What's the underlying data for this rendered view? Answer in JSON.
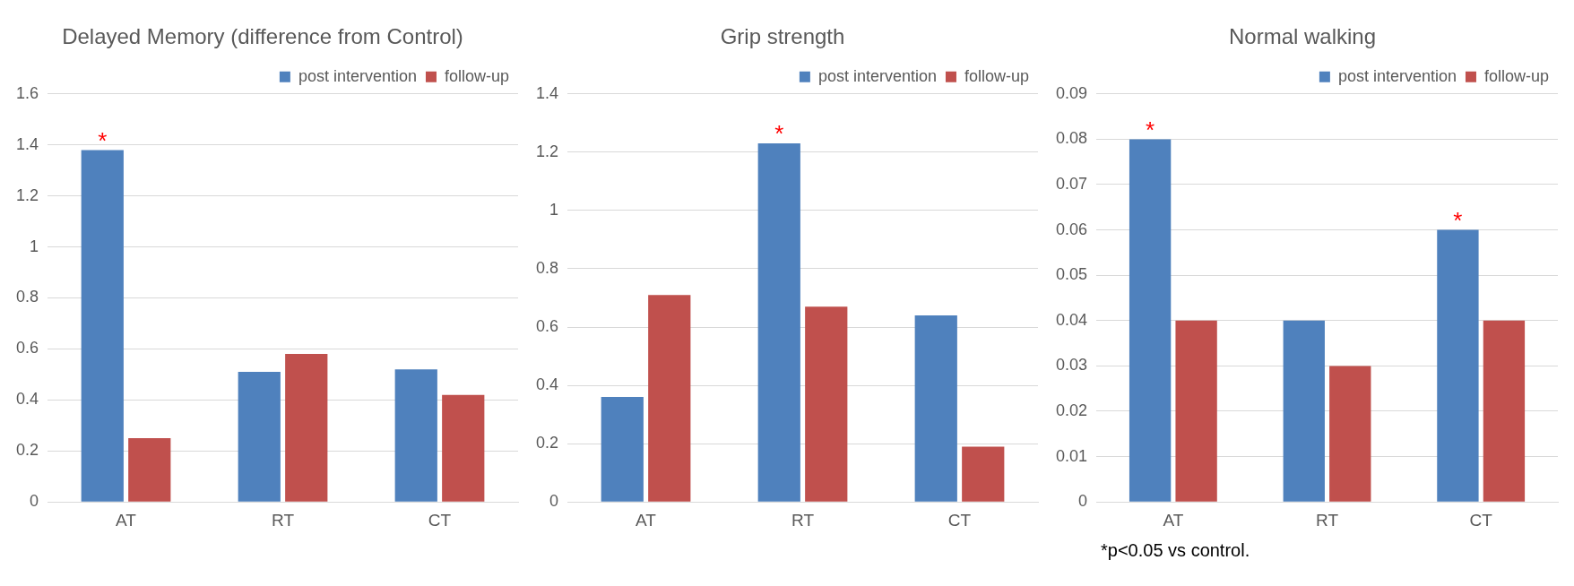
{
  "chart_data": [
    {
      "type": "bar",
      "title": "Delayed Memory (difference from Control)",
      "categories": [
        "AT",
        "RT",
        "CT"
      ],
      "series": [
        {
          "name": "post intervention",
          "color": "#4f81bd",
          "values": [
            1.38,
            0.51,
            0.52
          ]
        },
        {
          "name": "follow-up",
          "color": "#c0504d",
          "values": [
            0.25,
            0.58,
            0.42
          ]
        }
      ],
      "ylim": [
        0,
        1.6
      ],
      "yticks": [
        0,
        0.2,
        0.4,
        0.6,
        0.8,
        1,
        1.2,
        1.4,
        1.6
      ],
      "grid": "y",
      "legend": "top right",
      "annotations": [
        {
          "text": "*",
          "x": "AT",
          "y": 1.38
        }
      ]
    },
    {
      "type": "bar",
      "title": "Grip strength",
      "categories": [
        "AT",
        "RT",
        "CT"
      ],
      "series": [
        {
          "name": "post intervention",
          "color": "#4f81bd",
          "values": [
            0.36,
            1.23,
            0.64
          ]
        },
        {
          "name": "follow-up",
          "color": "#c0504d",
          "values": [
            0.71,
            0.67,
            0.19
          ]
        }
      ],
      "ylim": [
        0,
        1.4
      ],
      "yticks": [
        0,
        0.2,
        0.4,
        0.6,
        0.8,
        1,
        1.2,
        1.4
      ],
      "grid": "y",
      "legend": "top right",
      "annotations": [
        {
          "text": "*",
          "x": "RT",
          "y": 1.23
        }
      ]
    },
    {
      "type": "bar",
      "title": "Normal walking",
      "categories": [
        "AT",
        "RT",
        "CT"
      ],
      "series": [
        {
          "name": "post intervention",
          "color": "#4f81bd",
          "values": [
            0.08,
            0.04,
            0.06
          ]
        },
        {
          "name": "follow-up",
          "color": "#c0504d",
          "values": [
            0.04,
            0.03,
            0.04
          ]
        }
      ],
      "ylim": [
        0,
        0.09
      ],
      "yticks": [
        0,
        0.01,
        0.02,
        0.03,
        0.04,
        0.05,
        0.06,
        0.07,
        0.08,
        0.09
      ],
      "grid": "y",
      "legend": "top right",
      "annotations": [
        {
          "text": "*",
          "x": "AT",
          "y": 0.08
        },
        {
          "text": "*",
          "x": "CT",
          "y": 0.06
        },
        "*p<0.05 vs control."
      ]
    }
  ]
}
